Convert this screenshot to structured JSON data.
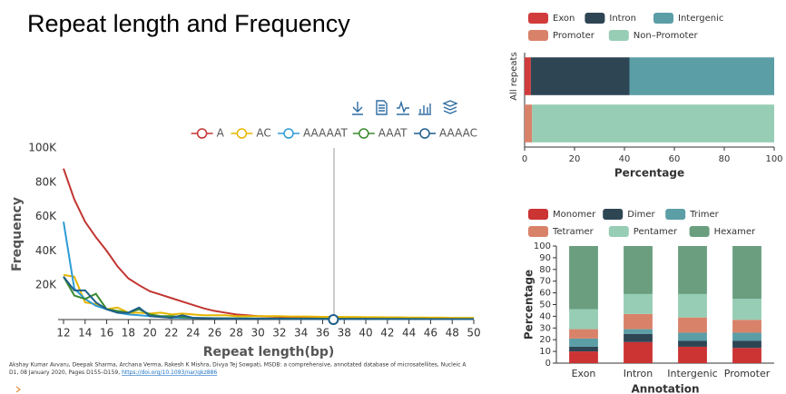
{
  "title": "Repeat length and Frequency",
  "citation": {
    "line1": "Akshay Kumar Avvaru, Deepak Sharma, Archana Verma, Rakesh K Mishra, Divya Tej Sowpati, MSDB: a comprehensive, annotated database of microsatellites, Nucleic A",
    "line2": "D1, 08 January 2020, Pages D155–D159,",
    "link": "https://doi.org/10.1093/nar/gkz886"
  },
  "chart_data": [
    {
      "type": "line",
      "xlabel": "Repeat length(bp)",
      "ylabel": "Frequency",
      "x": [
        12,
        13,
        14,
        15,
        16,
        17,
        18,
        19,
        20,
        21,
        22,
        23,
        24,
        25,
        26,
        27,
        28,
        29,
        30,
        31,
        32,
        33,
        34,
        35,
        36,
        37,
        38,
        39,
        40,
        41,
        42,
        43,
        44,
        45,
        46,
        47,
        48,
        49,
        50
      ],
      "xlim": [
        12,
        50
      ],
      "xticks": [
        12,
        14,
        16,
        18,
        20,
        22,
        24,
        26,
        28,
        30,
        32,
        34,
        36,
        38,
        40,
        42,
        44,
        46,
        48,
        50
      ],
      "ylim": [
        0,
        100000
      ],
      "yticks": [
        {
          "value": 20000,
          "label": "20K"
        },
        {
          "value": 40000,
          "label": "40K"
        },
        {
          "value": 60000,
          "label": "60K"
        },
        {
          "value": 80000,
          "label": "80K"
        },
        {
          "value": 100000,
          "label": "100K"
        }
      ],
      "series": [
        {
          "name": "A",
          "color": "#c23531",
          "values": [
            88000,
            70000,
            57000,
            48000,
            40000,
            31000,
            24000,
            20000,
            16500,
            14500,
            12500,
            10500,
            8500,
            6500,
            5000,
            4000,
            3000,
            2500,
            2000,
            1800,
            1600,
            1500,
            1400,
            1300,
            1200,
            1100,
            1000,
            950,
            900,
            850,
            800,
            750,
            700,
            650,
            600,
            580,
            560,
            540,
            520
          ]
        },
        {
          "name": "AC",
          "color": "#e6b600",
          "values": [
            26000,
            25000,
            10000,
            9000,
            6000,
            7000,
            4000,
            4000,
            3500,
            4000,
            3000,
            3500,
            3000,
            2500,
            2500,
            2500,
            2000,
            2000,
            2000,
            2000,
            2000,
            1800,
            1800,
            1700,
            1600,
            1600,
            1500,
            1500,
            1400,
            1400,
            1300,
            1300,
            1200,
            1200,
            1100,
            1100,
            1000,
            1000,
            1000
          ]
        },
        {
          "name": "AAAAAT",
          "color": "#2e9bd6",
          "values": [
            57000,
            18000,
            12000,
            8000,
            6000,
            4000,
            3000,
            2500,
            2000,
            1500,
            1200,
            1000,
            900,
            800,
            700,
            650,
            600,
            550,
            500,
            500,
            450,
            450,
            400,
            400,
            400,
            350,
            350,
            350,
            300,
            300,
            300,
            300,
            300,
            300,
            250,
            250,
            250,
            250,
            250
          ]
        },
        {
          "name": "AAAT",
          "color": "#3a8a2e",
          "values": [
            25000,
            14000,
            12000,
            15000,
            6000,
            5000,
            4000,
            6000,
            3000,
            2000,
            2000,
            1500,
            1000,
            900,
            800,
            800,
            700,
            700,
            600,
            600,
            600,
            550,
            550,
            500,
            500,
            500,
            450,
            450,
            450,
            400,
            400,
            400,
            400,
            400,
            350,
            350,
            350,
            350,
            350
          ]
        },
        {
          "name": "AAAAC",
          "color": "#1f5f8b",
          "values": [
            25000,
            17000,
            17000,
            10000,
            6000,
            4000,
            4000,
            7000,
            2000,
            1500,
            1000,
            2500,
            1000,
            800,
            700,
            600,
            600,
            500,
            500,
            450,
            450,
            400,
            400,
            400,
            350,
            350,
            350,
            300,
            300,
            300,
            300,
            300,
            250,
            250,
            250,
            250,
            250,
            250,
            250
          ]
        }
      ]
    },
    {
      "type": "bar",
      "horizontal": true,
      "stacked": true,
      "xlabel": "Percentage",
      "categories": [
        "All repeats",
        null
      ],
      "xlim": [
        0,
        100
      ],
      "xticks": [
        0,
        20,
        40,
        60,
        80,
        100
      ],
      "series": [
        {
          "name": "Exon",
          "color": "#d13b3b",
          "values": [
            2.5,
            0
          ]
        },
        {
          "name": "Intron",
          "color": "#2e4554",
          "values": [
            39.5,
            0
          ]
        },
        {
          "name": "Intergenic",
          "color": "#5b9ea6",
          "values": [
            58,
            0
          ]
        },
        {
          "name": "Promoter",
          "color": "#d9826a",
          "values": [
            0,
            3
          ]
        },
        {
          "name": "Non–Promoter",
          "color": "#96cdb4",
          "values": [
            0,
            97
          ]
        }
      ]
    },
    {
      "type": "bar",
      "horizontal": false,
      "stacked": true,
      "xlabel": "Annotation",
      "ylabel": "Percentage",
      "categories": [
        "Exon",
        "Intron",
        "Intergenic",
        "Promoter"
      ],
      "ylim": [
        0,
        100
      ],
      "yticks": [
        0,
        10,
        20,
        30,
        40,
        50,
        60,
        70,
        80,
        90,
        100
      ],
      "series": [
        {
          "name": "Monomer",
          "color": "#cc3333",
          "values": [
            10,
            18,
            14,
            13
          ]
        },
        {
          "name": "Dimer",
          "color": "#2e4554",
          "values": [
            4,
            7,
            5,
            6
          ]
        },
        {
          "name": "Trimer",
          "color": "#5b9ea6",
          "values": [
            7,
            4,
            7,
            7
          ]
        },
        {
          "name": "Tetramer",
          "color": "#d9826a",
          "values": [
            8,
            13,
            13,
            11
          ]
        },
        {
          "name": "Pentamer",
          "color": "#96cdb4",
          "values": [
            17,
            17,
            20,
            18
          ]
        },
        {
          "name": "Hexamer",
          "color": "#6a9e7f",
          "values": [
            54,
            41,
            41,
            45
          ]
        }
      ]
    }
  ]
}
